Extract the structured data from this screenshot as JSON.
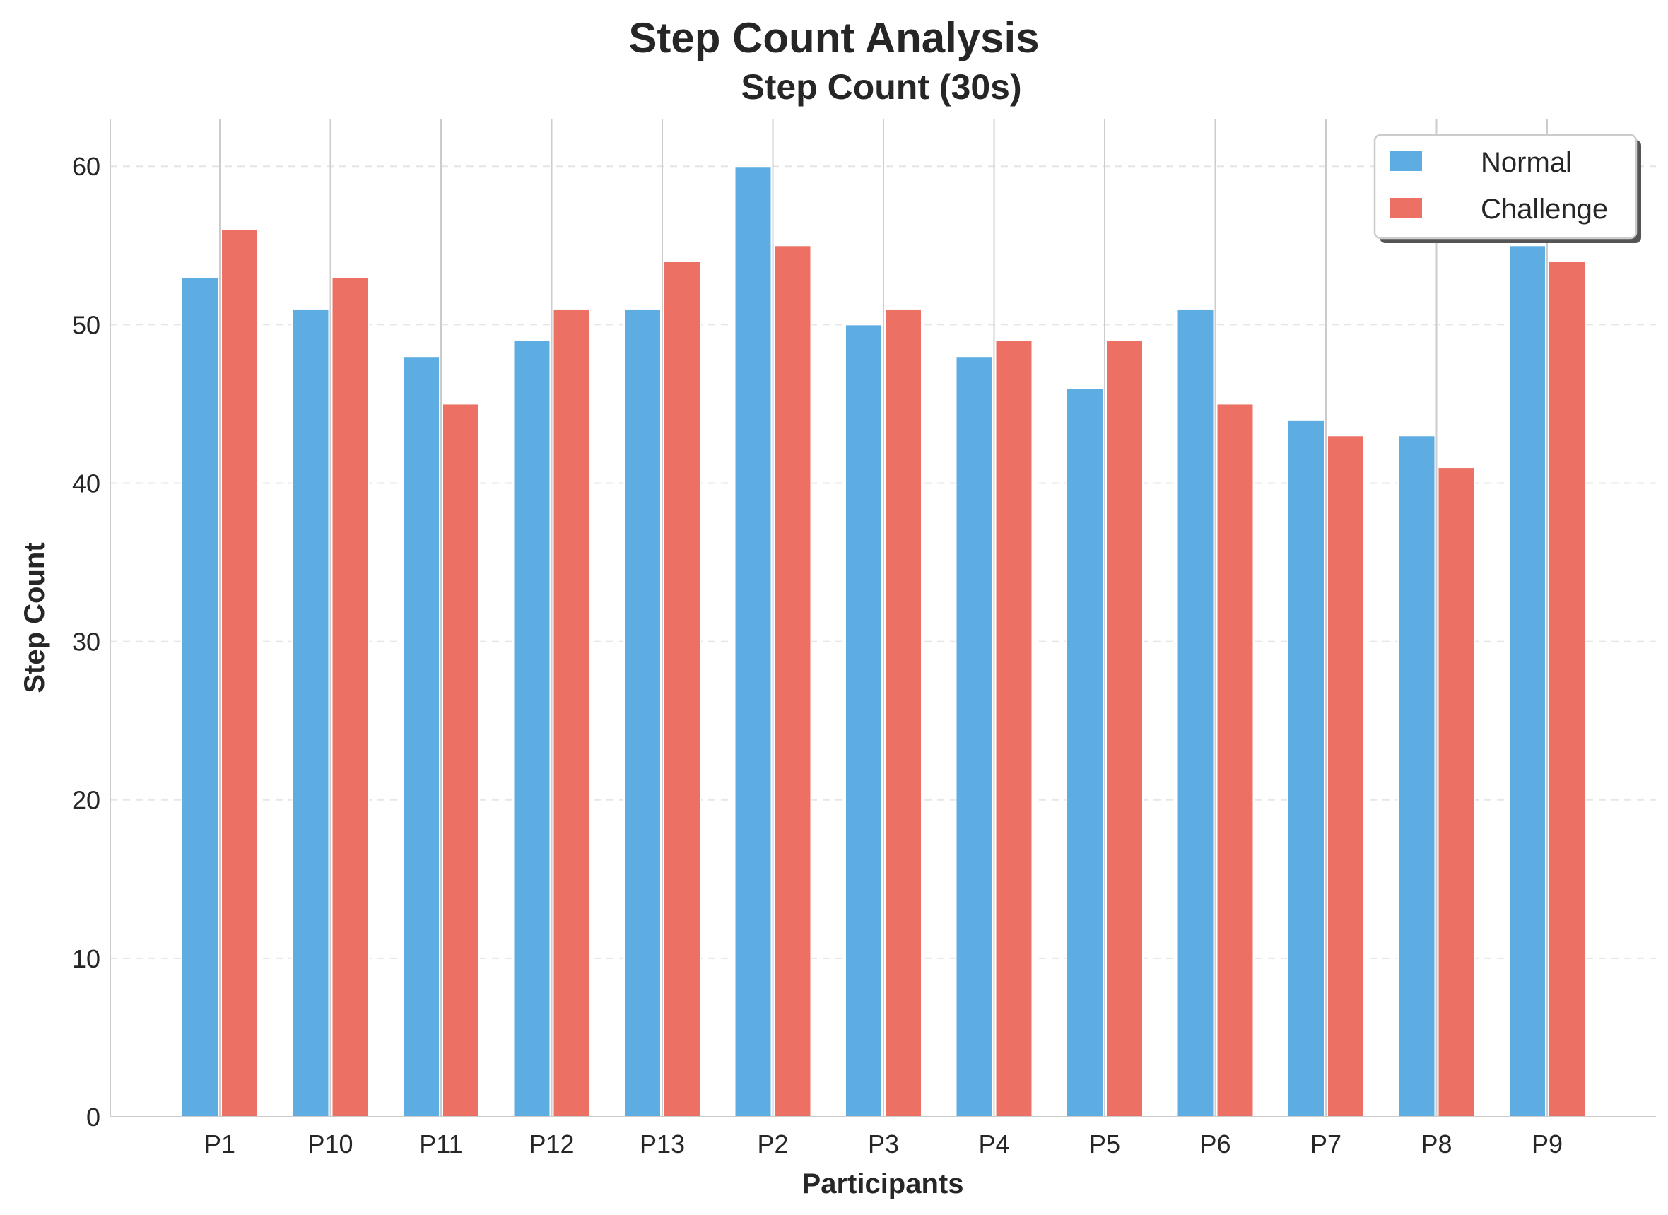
{
  "chart_data": {
    "type": "bar",
    "title": "Step Count Analysis",
    "subtitle": "Step Count (30s)",
    "xlabel": "Participants",
    "ylabel": "Step Count",
    "ylim": [
      0,
      63
    ],
    "yticks": [
      0,
      10,
      20,
      30,
      40,
      50,
      60
    ],
    "grid": "y-dashed",
    "legend_position": "top-right",
    "categories": [
      "P1",
      "P10",
      "P11",
      "P12",
      "P13",
      "P2",
      "P3",
      "P4",
      "P5",
      "P6",
      "P7",
      "P8",
      "P9"
    ],
    "series": [
      {
        "name": "Normal",
        "color": "#5DADE2",
        "values": [
          53,
          51,
          48,
          49,
          51,
          60,
          50,
          48,
          46,
          51,
          44,
          43,
          55
        ]
      },
      {
        "name": "Challenge",
        "color": "#EC7063",
        "values": [
          56,
          53,
          45,
          51,
          54,
          55,
          51,
          49,
          49,
          45,
          43,
          41,
          54
        ]
      }
    ]
  }
}
